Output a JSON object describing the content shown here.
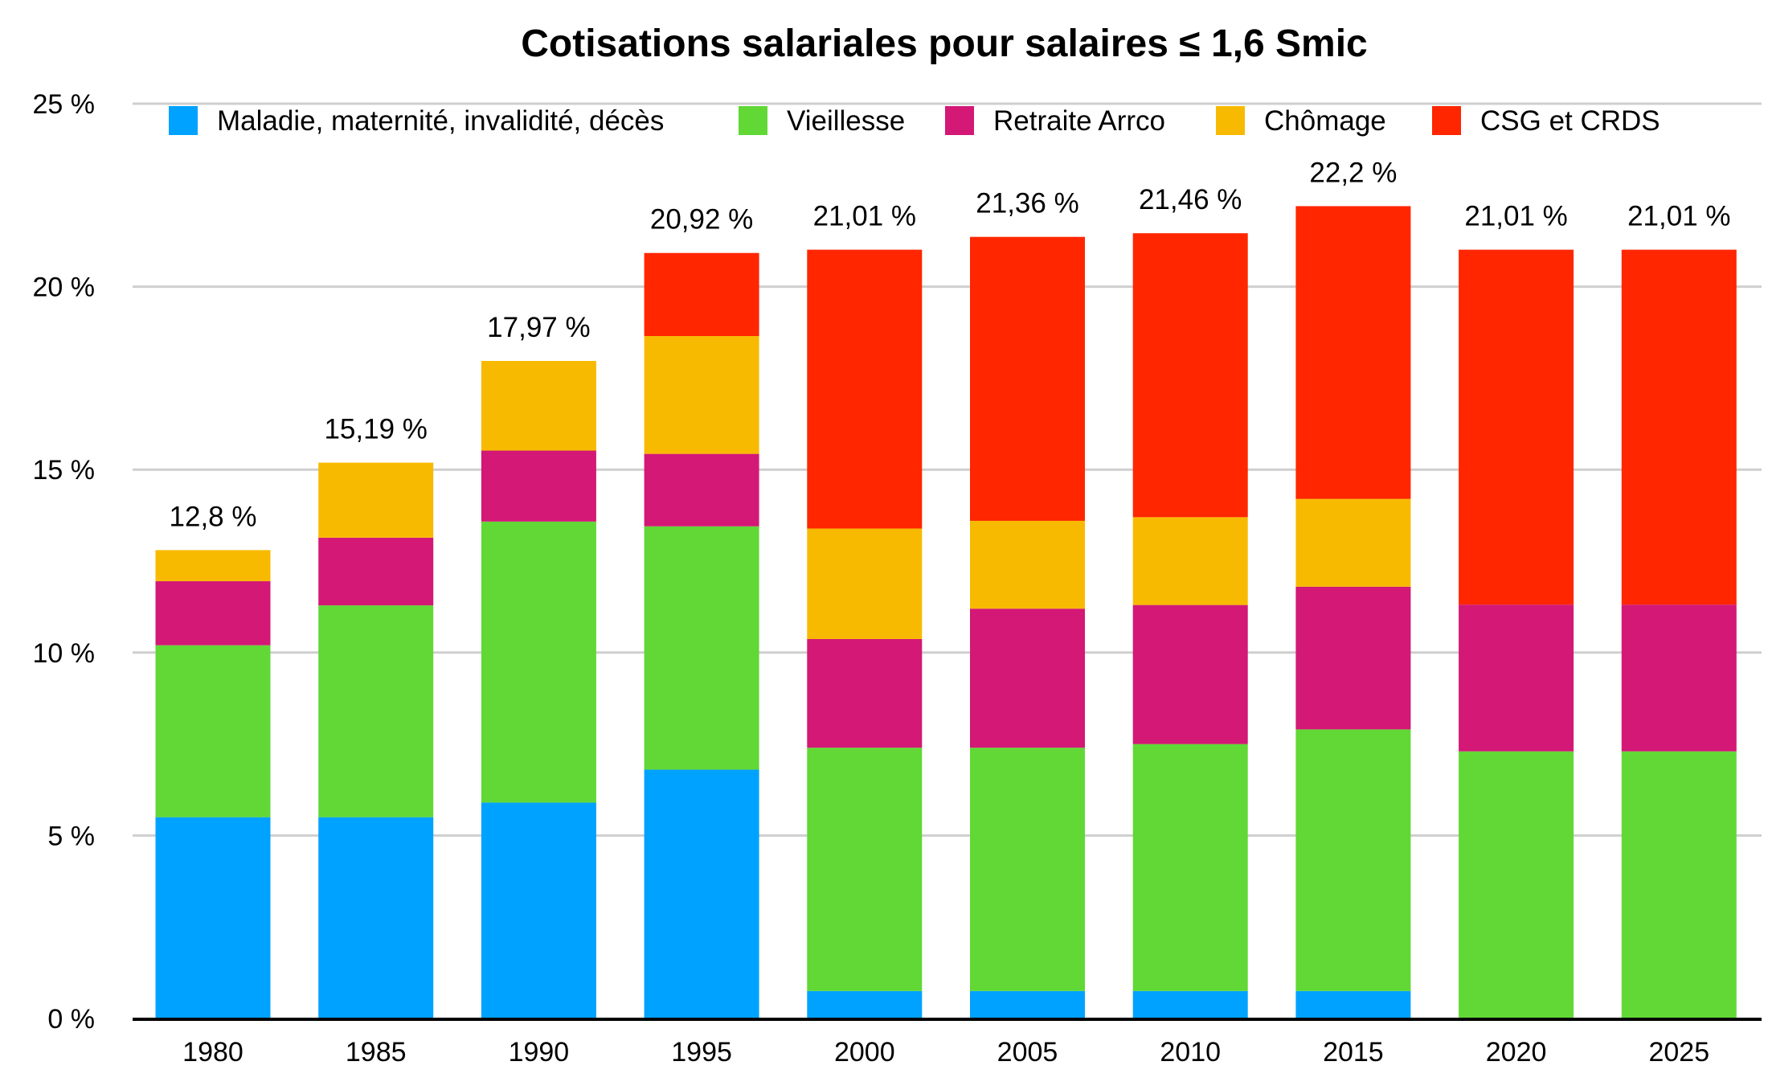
{
  "chart_data": {
    "type": "bar",
    "stacked": true,
    "title": "Cotisations salariales pour salaires ≤ 1,6 Smic",
    "xlabel": "",
    "ylabel": "",
    "ylim": [
      0,
      25
    ],
    "y_ticks": [
      0,
      5,
      10,
      15,
      20,
      25
    ],
    "y_tick_labels": [
      "0 %",
      "5 %",
      "10 %",
      "15 %",
      "20 %",
      "25 %"
    ],
    "grid": true,
    "legend_position": "top",
    "categories": [
      "1980",
      "1985",
      "1990",
      "1995",
      "2000",
      "2005",
      "2010",
      "2015",
      "2020",
      "2025"
    ],
    "series": [
      {
        "name": "Maladie, maternité, invalidité, décès",
        "color": "#00A2FF",
        "values": [
          5.5,
          5.5,
          5.9,
          6.8,
          0.75,
          0.75,
          0.75,
          0.75,
          0,
          0
        ]
      },
      {
        "name": "Vieillesse",
        "color": "#61D836",
        "values": [
          4.7,
          5.79,
          7.68,
          6.65,
          6.65,
          6.65,
          6.75,
          7.15,
          7.3,
          7.3
        ]
      },
      {
        "name": "Retraite Arrco",
        "color": "#D31876",
        "values": [
          1.75,
          1.85,
          1.94,
          1.98,
          2.97,
          3.8,
          3.8,
          3.9,
          4.01,
          4.01
        ]
      },
      {
        "name": "Chômage",
        "color": "#F8BA00",
        "values": [
          0.85,
          2.05,
          2.45,
          3.22,
          3.02,
          2.4,
          2.4,
          2.4,
          0,
          0
        ]
      },
      {
        "name": "CSG et CRDS",
        "color": "#FF2600",
        "values": [
          0,
          0,
          0,
          2.27,
          7.62,
          7.76,
          7.76,
          8.0,
          9.7,
          9.7
        ]
      }
    ],
    "totals": [
      12.8,
      15.19,
      17.97,
      20.92,
      21.01,
      21.36,
      21.46,
      22.2,
      21.01,
      21.01
    ],
    "total_labels": [
      "12,8 %",
      "15,19 %",
      "17,97 %",
      "20,92 %",
      "21,01 %",
      "21,36 %",
      "21,46 %",
      "22,2 %",
      "21,01 %",
      "21,01 %"
    ]
  }
}
